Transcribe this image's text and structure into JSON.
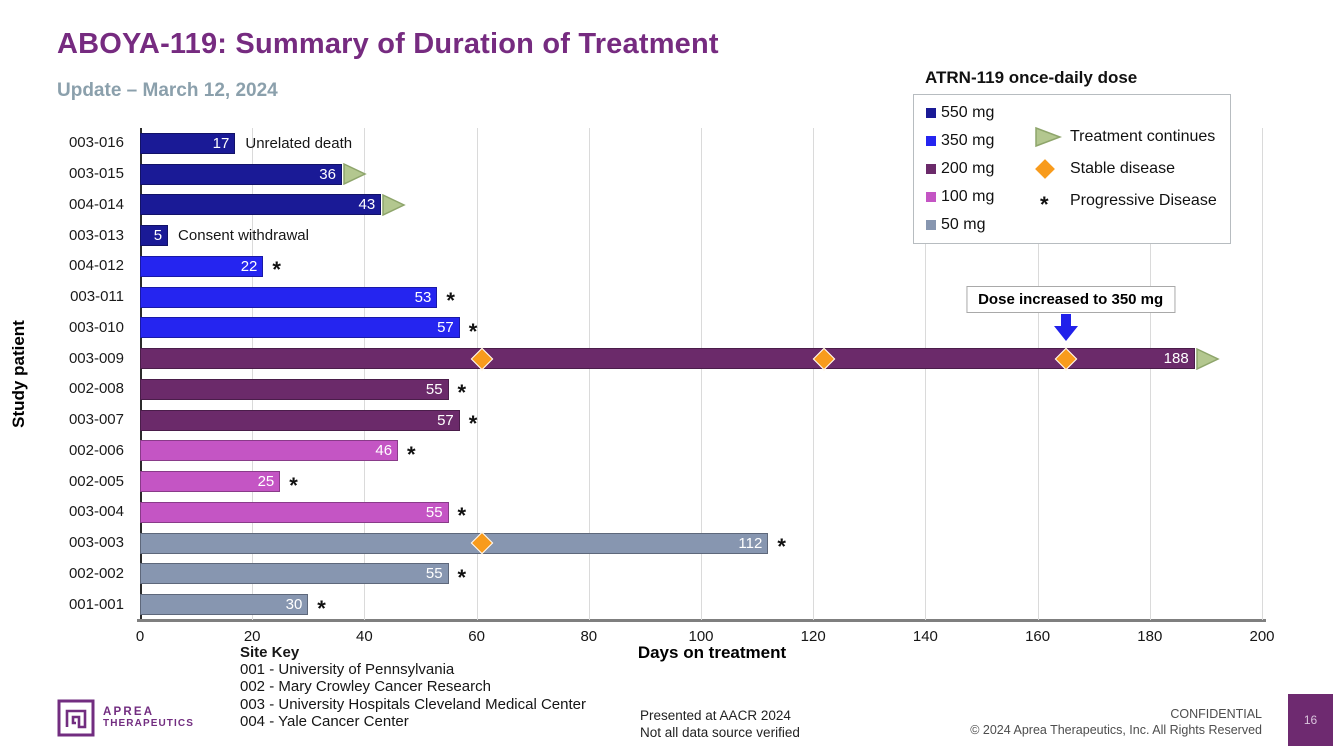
{
  "header": {
    "title": "ABOYA-119: Summary of Duration of Treatment",
    "subtitle": "Update – March 12, 2024"
  },
  "legend": {
    "title": "ATRN-119 once-daily dose",
    "doses": [
      {
        "label": "550 mg",
        "color": "#1a1a96"
      },
      {
        "label": "350 mg",
        "color": "#2525f0"
      },
      {
        "label": "200 mg",
        "color": "#6b2a6a"
      },
      {
        "label": "100 mg",
        "color": "#c455c4"
      },
      {
        "label": "50 mg",
        "color": "#8796b0"
      }
    ],
    "symbols": [
      {
        "type": "triangle",
        "label": "Treatment continues"
      },
      {
        "type": "diamond",
        "label": "Stable disease"
      },
      {
        "type": "asterisk",
        "label": "Progressive Disease"
      }
    ]
  },
  "chart_data": {
    "type": "bar",
    "orientation": "horizontal",
    "xlabel": "Days on treatment",
    "ylabel": "Study patient",
    "xlim": [
      0,
      200
    ],
    "xticks": [
      0,
      20,
      40,
      60,
      80,
      100,
      120,
      140,
      160,
      180,
      200
    ],
    "grid": true,
    "dose_colors": {
      "550 mg": "#1a1a96",
      "350 mg": "#2525f0",
      "200 mg": "#6b2a6a",
      "100 mg": "#c455c4",
      "50 mg": "#8796b0"
    },
    "marker_colors": {
      "triangle_fill": "#b3c78f",
      "triangle_stroke": "#8ea56b",
      "diamond": "#f89b1c",
      "arrow": "#2121ea"
    },
    "rows": [
      {
        "patient": "003-016",
        "days": 17,
        "dose": "550 mg",
        "annotation": "Unrelated death"
      },
      {
        "patient": "003-015",
        "days": 36,
        "dose": "550 mg",
        "treatment_continues": true
      },
      {
        "patient": "004-014",
        "days": 43,
        "dose": "550 mg",
        "treatment_continues": true
      },
      {
        "patient": "003-013",
        "days": 5,
        "dose": "550 mg",
        "annotation": "Consent withdrawal"
      },
      {
        "patient": "004-012",
        "days": 22,
        "dose": "350 mg",
        "progressive_disease": true
      },
      {
        "patient": "003-011",
        "days": 53,
        "dose": "350 mg",
        "progressive_disease": true
      },
      {
        "patient": "003-010",
        "days": 57,
        "dose": "350 mg",
        "progressive_disease": true
      },
      {
        "patient": "003-009",
        "days": 188,
        "dose": "200 mg",
        "treatment_continues": true,
        "stable_disease_days": [
          61,
          122,
          165
        ],
        "callout": {
          "text": "Dose increased to 350 mg",
          "day": 165
        }
      },
      {
        "patient": "002-008",
        "days": 55,
        "dose": "200 mg",
        "progressive_disease": true
      },
      {
        "patient": "003-007",
        "days": 57,
        "dose": "200 mg",
        "progressive_disease": true
      },
      {
        "patient": "002-006",
        "days": 46,
        "dose": "100 mg",
        "progressive_disease": true
      },
      {
        "patient": "002-005",
        "days": 25,
        "dose": "100 mg",
        "progressive_disease": true
      },
      {
        "patient": "003-004",
        "days": 55,
        "dose": "100 mg",
        "progressive_disease": true
      },
      {
        "patient": "003-003",
        "days": 112,
        "dose": "50 mg",
        "progressive_disease": true,
        "stable_disease_days": [
          61
        ]
      },
      {
        "patient": "002-002",
        "days": 55,
        "dose": "50 mg",
        "progressive_disease": true
      },
      {
        "patient": "001-001",
        "days": 30,
        "dose": "50 mg",
        "progressive_disease": true
      }
    ]
  },
  "site_key": {
    "title": "Site Key",
    "entries": [
      "001 -  University of Pennsylvania",
      "002 -  Mary Crowley Cancer Research",
      "003 -  University Hospitals Cleveland Medical Center",
      "004 -  Yale Cancer Center"
    ]
  },
  "footer": {
    "logo_line1": "APREA",
    "logo_line2": "THERAPEUTICS",
    "mid_line1": "Presented at AACR 2024",
    "mid_line2": "Not all data source verified",
    "confidential": "CONFIDENTIAL",
    "copyright": "© 2024 Aprea Therapeutics, Inc. All Rights Reserved",
    "page_number": "16"
  }
}
